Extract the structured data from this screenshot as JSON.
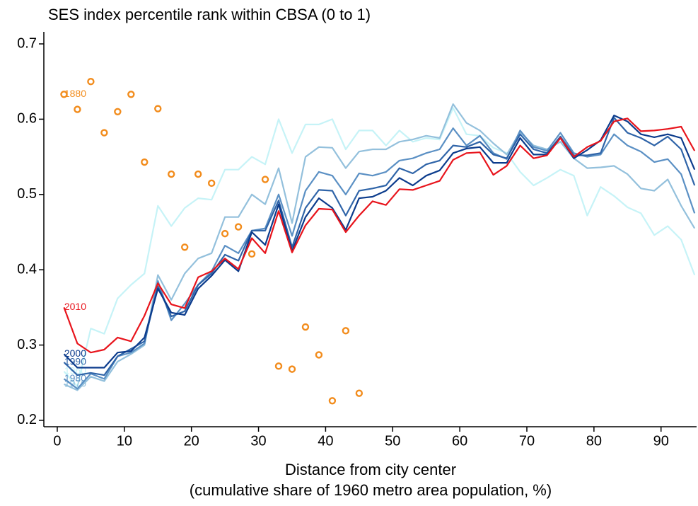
{
  "chart_data": {
    "type": "line",
    "title": "SES index percentile rank within CBSA (0 to 1)",
    "x_label": [
      "Distance from city center",
      "(cumulative share of 1960 metro area population, %)"
    ],
    "x": [
      1,
      3,
      5,
      7,
      9,
      11,
      13,
      15,
      17,
      19,
      21,
      23,
      25,
      27,
      29,
      31,
      33,
      35,
      37,
      39,
      41,
      43,
      45,
      47,
      49,
      51,
      53,
      55,
      57,
      59,
      61,
      63,
      65,
      67,
      69,
      71,
      73,
      75,
      77,
      79,
      81,
      83,
      85,
      87,
      89,
      91,
      93,
      95
    ],
    "xlim": [
      -2,
      95.3
    ],
    "xticks": [
      0,
      10,
      20,
      30,
      40,
      50,
      60,
      70,
      80,
      90
    ],
    "ylim": [
      0.1915,
      0.716
    ],
    "yticks": [
      0.2,
      0.3,
      0.4,
      0.5,
      0.6,
      0.7
    ],
    "series": [
      {
        "name": "1960",
        "type": "line",
        "color": "#c6f3f7",
        "values": [
          0.265,
          0.245,
          0.322,
          0.315,
          0.362,
          0.38,
          0.395,
          0.485,
          0.458,
          0.482,
          0.495,
          0.493,
          0.533,
          0.533,
          0.55,
          0.54,
          0.6,
          0.555,
          0.593,
          0.593,
          0.6,
          0.56,
          0.585,
          0.585,
          0.565,
          0.585,
          0.57,
          0.575,
          0.573,
          0.615,
          0.58,
          0.578,
          0.562,
          0.555,
          0.53,
          0.512,
          0.522,
          0.533,
          0.525,
          0.472,
          0.51,
          0.498,
          0.483,
          0.475,
          0.446,
          0.458,
          0.44,
          0.393
        ]
      },
      {
        "name": "1970",
        "type": "line",
        "color": "#93c0dc",
        "values": [
          0.248,
          0.24,
          0.258,
          0.252,
          0.278,
          0.288,
          0.3,
          0.393,
          0.36,
          0.395,
          0.415,
          0.422,
          0.47,
          0.47,
          0.5,
          0.487,
          0.535,
          0.462,
          0.55,
          0.563,
          0.562,
          0.535,
          0.557,
          0.56,
          0.56,
          0.57,
          0.573,
          0.578,
          0.575,
          0.62,
          0.595,
          0.585,
          0.568,
          0.553,
          0.583,
          0.565,
          0.56,
          0.57,
          0.548,
          0.535,
          0.536,
          0.538,
          0.527,
          0.508,
          0.505,
          0.52,
          0.485,
          0.455
        ]
      },
      {
        "name": "1980",
        "type": "line",
        "color": "#5b90c4",
        "values": [
          0.255,
          0.242,
          0.262,
          0.255,
          0.285,
          0.29,
          0.302,
          0.385,
          0.333,
          0.355,
          0.38,
          0.398,
          0.432,
          0.422,
          0.452,
          0.455,
          0.5,
          0.445,
          0.505,
          0.53,
          0.525,
          0.5,
          0.528,
          0.525,
          0.53,
          0.545,
          0.548,
          0.555,
          0.56,
          0.588,
          0.565,
          0.578,
          0.555,
          0.547,
          0.585,
          0.563,
          0.558,
          0.582,
          0.555,
          0.55,
          0.553,
          0.58,
          0.565,
          0.557,
          0.543,
          0.547,
          0.527,
          0.475
        ]
      },
      {
        "name": "1990",
        "type": "line",
        "color": "#2f64a8",
        "values": [
          0.277,
          0.26,
          0.263,
          0.26,
          0.285,
          0.295,
          0.305,
          0.378,
          0.338,
          0.345,
          0.38,
          0.395,
          0.42,
          0.412,
          0.452,
          0.452,
          0.492,
          0.43,
          0.482,
          0.506,
          0.505,
          0.472,
          0.505,
          0.508,
          0.512,
          0.535,
          0.528,
          0.54,
          0.545,
          0.565,
          0.563,
          0.57,
          0.553,
          0.548,
          0.58,
          0.56,
          0.555,
          0.577,
          0.552,
          0.552,
          0.555,
          0.602,
          0.582,
          0.575,
          0.565,
          0.577,
          0.56,
          0.512
        ]
      },
      {
        "name": "2000",
        "type": "line",
        "color": "#0b3b8c",
        "values": [
          0.288,
          0.27,
          0.27,
          0.27,
          0.29,
          0.292,
          0.31,
          0.375,
          0.343,
          0.34,
          0.375,
          0.392,
          0.413,
          0.398,
          0.45,
          0.433,
          0.487,
          0.425,
          0.47,
          0.495,
          0.482,
          0.453,
          0.495,
          0.497,
          0.505,
          0.522,
          0.512,
          0.525,
          0.532,
          0.555,
          0.561,
          0.563,
          0.542,
          0.542,
          0.575,
          0.553,
          0.553,
          0.575,
          0.548,
          0.559,
          0.572,
          0.605,
          0.597,
          0.58,
          0.576,
          0.58,
          0.575,
          0.533
        ]
      },
      {
        "name": "2010",
        "type": "line",
        "color": "#e8141c",
        "values": [
          0.35,
          0.302,
          0.29,
          0.294,
          0.31,
          0.305,
          0.339,
          0.382,
          0.354,
          0.349,
          0.39,
          0.398,
          0.415,
          0.401,
          0.442,
          0.422,
          0.478,
          0.423,
          0.459,
          0.481,
          0.48,
          0.45,
          0.472,
          0.491,
          0.486,
          0.507,
          0.506,
          0.512,
          0.518,
          0.546,
          0.555,
          0.556,
          0.526,
          0.538,
          0.565,
          0.548,
          0.552,
          0.575,
          0.55,
          0.563,
          0.571,
          0.597,
          0.601,
          0.584,
          0.585,
          0.587,
          0.59,
          0.558
        ]
      },
      {
        "name": "1880",
        "type": "scatter",
        "color": "#f28c1c",
        "x": [
          1,
          3,
          5,
          7,
          9,
          11,
          13,
          15,
          17,
          19,
          21,
          23,
          25,
          27,
          29,
          31,
          33,
          35,
          37,
          39,
          41,
          43,
          45
        ],
        "values": [
          0.633,
          0.613,
          0.65,
          0.582,
          0.61,
          0.633,
          0.543,
          0.614,
          0.527,
          0.43,
          0.527,
          0.515,
          0.448,
          0.457,
          0.421,
          0.52,
          0.272,
          0.268,
          0.324,
          0.287,
          0.226,
          0.319,
          0.236
        ]
      }
    ]
  }
}
